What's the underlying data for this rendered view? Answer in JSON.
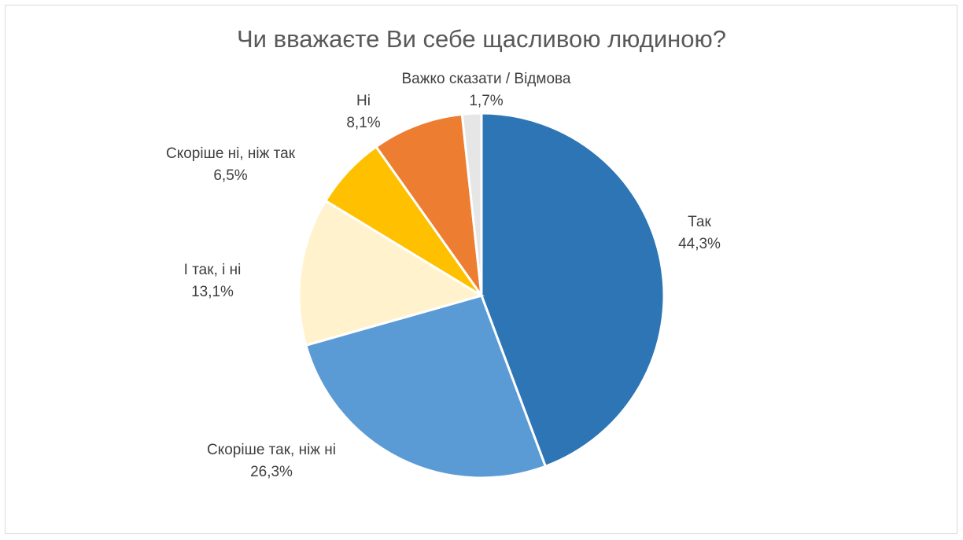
{
  "chart_data": {
    "type": "pie",
    "title": "Чи вважаєте Ви себе щасливою людиною?",
    "categories": [
      "Так",
      "Скоріше так, ніж ні",
      "І так, і ні",
      "Скоріше ні, ніж так",
      "Ні",
      "Важко сказати / Відмова"
    ],
    "values": [
      44.3,
      26.3,
      13.1,
      6.5,
      8.1,
      1.7
    ],
    "value_labels": [
      "44,3%",
      "26,3%",
      "13,1%",
      "6,5%",
      "8,1%",
      "1,7%"
    ],
    "colors": [
      "#2E75B6",
      "#5B9BD5",
      "#FFF2CC",
      "#FFC000",
      "#ED7D31",
      "#E7E6E6"
    ]
  }
}
